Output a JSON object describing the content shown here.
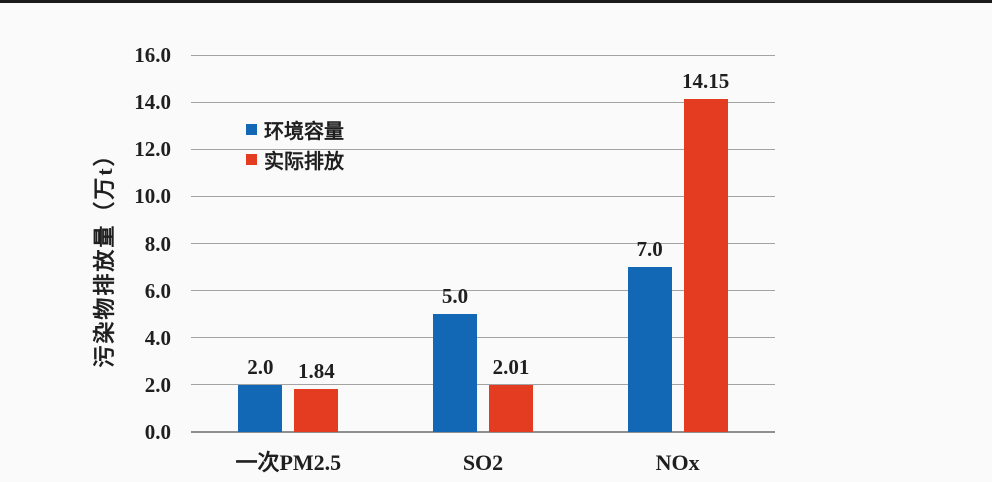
{
  "page": {
    "background": "#fbfafa",
    "top_edge_color": "#1b1b1b",
    "text_color": "#1f1f1f",
    "gridline_color": "#a3a3a3"
  },
  "chart_data": {
    "type": "bar",
    "title": "",
    "xlabel": "",
    "ylabel": "污染物排放量（万t）",
    "ylim": [
      0,
      16
    ],
    "ytick_step": 2,
    "ytick_labels": [
      "0.0",
      "2.0",
      "4.0",
      "6.0",
      "8.0",
      "10.0",
      "12.0",
      "14.0",
      "16.0"
    ],
    "grid": true,
    "legend_position": "inside-upper-left",
    "categories": [
      "一次PM2.5",
      "SO2",
      "NOx"
    ],
    "series": [
      {
        "name": "环境容量",
        "color": "#1368b5",
        "values": [
          2.0,
          5.0,
          7.0
        ],
        "labels": [
          "2.0",
          "5.0",
          "7.0"
        ]
      },
      {
        "name": "实际排放",
        "color": "#e43c20",
        "values": [
          1.84,
          2.01,
          14.15
        ],
        "labels": [
          "1.84",
          "2.01",
          "14.15"
        ]
      }
    ]
  }
}
